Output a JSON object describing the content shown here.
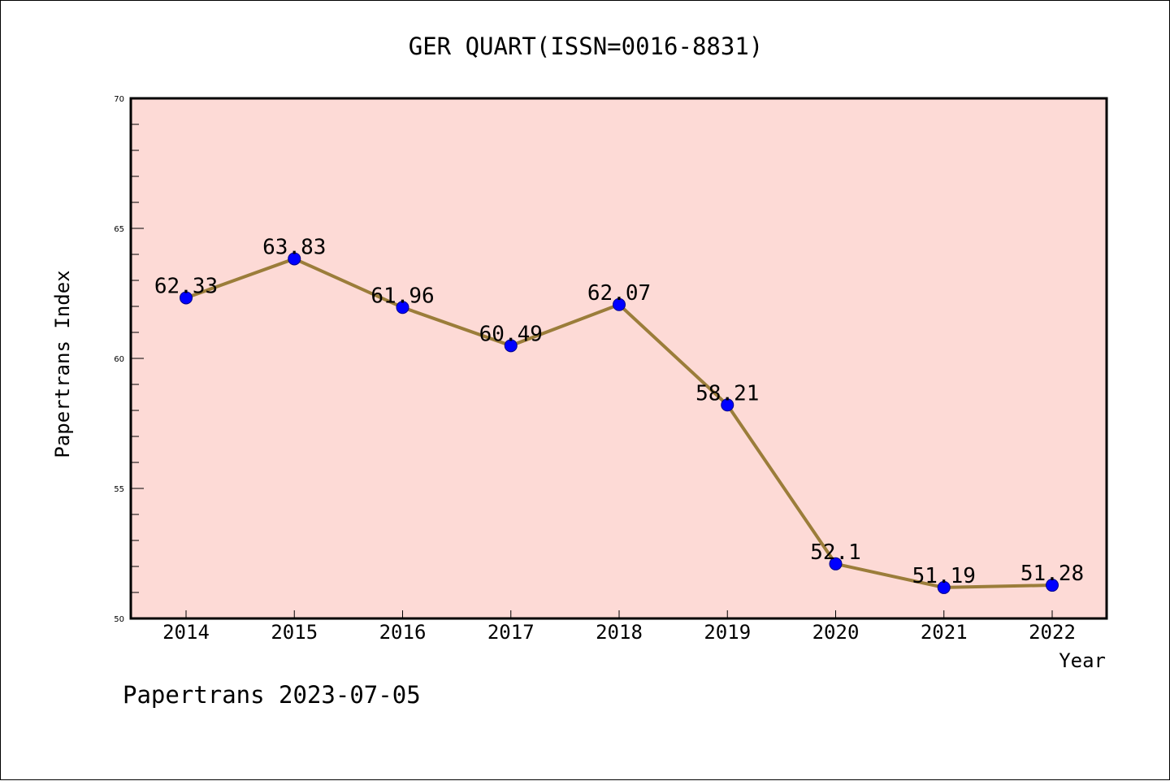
{
  "chart_data": {
    "type": "line",
    "title": "GER QUART(ISSN=0016-8831)",
    "xlabel": "Year",
    "ylabel": "Papertrans Index",
    "x": [
      "2014",
      "2015",
      "2016",
      "2017",
      "2018",
      "2019",
      "2020",
      "2021",
      "2022"
    ],
    "series": [
      {
        "values": [
          62.33,
          63.83,
          61.96,
          60.49,
          62.07,
          58.21,
          52.1,
          51.19,
          51.28
        ],
        "labels": [
          "62.33",
          "63.83",
          "61.96",
          "60.49",
          "62.07",
          "58.21",
          "52.1",
          "51.19",
          "51.28"
        ]
      }
    ],
    "ylim": [
      50,
      70
    ],
    "yticks": [
      "50",
      "55",
      "60",
      "65",
      "70"
    ],
    "grid": false,
    "legend": "none"
  },
  "footer": "Papertrans 2023-07-05",
  "colors": {
    "plot_background": "#fddad6",
    "line": "#9b7d3a",
    "marker": "#0000ff",
    "marker_edge": "#00008b",
    "axis": "#000000"
  }
}
